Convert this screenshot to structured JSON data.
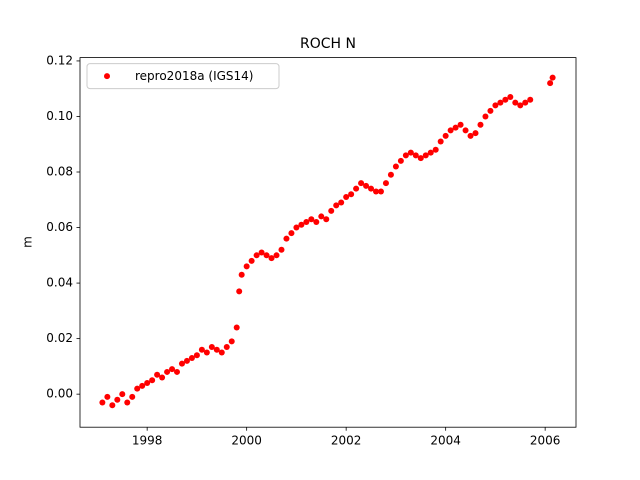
{
  "chart_data": {
    "type": "scatter",
    "title": "ROCH N",
    "y_label": "m",
    "xlim": [
      1996.65,
      2006.62
    ],
    "ylim": [
      -0.0119,
      0.1212
    ],
    "xticks": [
      1998,
      2000,
      2002,
      2004,
      2006
    ],
    "yticks": [
      {
        "value": 0,
        "label": "0.00"
      },
      0.02,
      0.04,
      0.06,
      0.08,
      {
        "value": 0.1,
        "label": "0.10"
      },
      0.12
    ],
    "legend_position": "upper left",
    "grid": false,
    "series": [
      {
        "name": "repro2018a (IGS14)",
        "color": "#ff0000",
        "x": [
          1997.1,
          1997.2,
          1997.3,
          1997.4,
          1997.5,
          1997.6,
          1997.7,
          1997.8,
          1997.9,
          1998.0,
          1998.1,
          1998.2,
          1998.3,
          1998.4,
          1998.5,
          1998.6,
          1998.7,
          1998.8,
          1998.9,
          1999.0,
          1999.1,
          1999.2,
          1999.3,
          1999.4,
          1999.5,
          1999.6,
          1999.7,
          1999.8,
          1999.85,
          1999.9,
          2000.0,
          2000.1,
          2000.2,
          2000.3,
          2000.4,
          2000.5,
          2000.6,
          2000.7,
          2000.8,
          2000.9,
          2001.0,
          2001.1,
          2001.2,
          2001.3,
          2001.4,
          2001.5,
          2001.6,
          2001.7,
          2001.8,
          2001.9,
          2002.0,
          2002.1,
          2002.2,
          2002.3,
          2002.4,
          2002.5,
          2002.6,
          2002.7,
          2002.8,
          2002.9,
          2003.0,
          2003.1,
          2003.2,
          2003.3,
          2003.4,
          2003.5,
          2003.6,
          2003.7,
          2003.8,
          2003.9,
          2004.0,
          2004.1,
          2004.2,
          2004.3,
          2004.4,
          2004.5,
          2004.6,
          2004.7,
          2004.8,
          2004.9,
          2005.0,
          2005.1,
          2005.2,
          2005.3,
          2005.4,
          2005.5,
          2005.6,
          2005.7,
          2006.1,
          2006.15
        ],
        "values": [
          -0.003,
          -0.001,
          -0.004,
          -0.002,
          0.0,
          -0.003,
          -0.001,
          0.002,
          0.003,
          0.004,
          0.005,
          0.007,
          0.006,
          0.008,
          0.009,
          0.008,
          0.011,
          0.012,
          0.013,
          0.014,
          0.016,
          0.015,
          0.017,
          0.016,
          0.015,
          0.017,
          0.019,
          0.024,
          0.037,
          0.043,
          0.046,
          0.048,
          0.05,
          0.051,
          0.05,
          0.049,
          0.05,
          0.052,
          0.056,
          0.058,
          0.06,
          0.061,
          0.062,
          0.063,
          0.062,
          0.064,
          0.063,
          0.066,
          0.068,
          0.069,
          0.071,
          0.072,
          0.074,
          0.076,
          0.075,
          0.074,
          0.073,
          0.073,
          0.076,
          0.079,
          0.082,
          0.084,
          0.086,
          0.087,
          0.086,
          0.085,
          0.086,
          0.087,
          0.088,
          0.091,
          0.093,
          0.095,
          0.096,
          0.097,
          0.095,
          0.093,
          0.094,
          0.097,
          0.1,
          0.102,
          0.104,
          0.105,
          0.106,
          0.107,
          0.105,
          0.104,
          0.105,
          0.106,
          0.112,
          0.114
        ]
      }
    ]
  }
}
